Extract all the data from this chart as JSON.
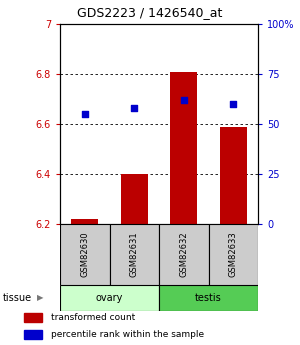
{
  "title": "GDS2223 / 1426540_at",
  "samples": [
    "GSM82630",
    "GSM82631",
    "GSM82632",
    "GSM82633"
  ],
  "bar_values": [
    6.22,
    6.4,
    6.81,
    6.59
  ],
  "percentile_values": [
    55,
    58,
    62,
    60
  ],
  "ylim_left": [
    6.2,
    7.0
  ],
  "ylim_right": [
    0,
    100
  ],
  "yticks_left": [
    6.2,
    6.4,
    6.6,
    6.8,
    7.0
  ],
  "ytick_labels_left": [
    "6.2",
    "6.4",
    "6.6",
    "6.8",
    "7"
  ],
  "yticks_right": [
    0,
    25,
    50,
    75,
    100
  ],
  "ytick_labels_right": [
    "0",
    "25",
    "50",
    "75",
    "100%"
  ],
  "bar_color": "#bb0000",
  "dot_color": "#0000cc",
  "bar_width": 0.55,
  "ovary_color": "#ccffcc",
  "testis_color": "#55cc55",
  "sample_box_color": "#cccccc",
  "legend_items": [
    {
      "label": "transformed count",
      "color": "#bb0000"
    },
    {
      "label": "percentile rank within the sample",
      "color": "#0000cc"
    }
  ],
  "left_tick_color": "#cc0000",
  "right_tick_color": "#0000cc",
  "grid_color": "#000000",
  "n_samples": 4
}
